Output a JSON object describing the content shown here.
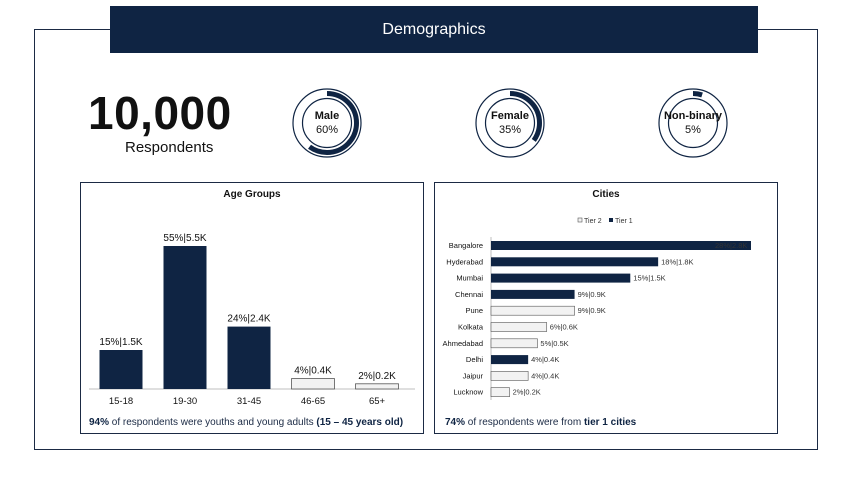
{
  "banner": {
    "title": "Demographics"
  },
  "summary": {
    "count": "10,000",
    "label": "Respondents"
  },
  "gender": [
    {
      "name": "Male",
      "percent_label": "60%",
      "share": 0.6
    },
    {
      "name": "Female",
      "percent_label": "35%",
      "share": 0.35
    },
    {
      "name": "Non-binary",
      "percent_label": "5%",
      "share": 0.05
    }
  ],
  "colors": {
    "navy": "#0f2443",
    "light": "#f2f2f2",
    "ring_bg": "#ffffff"
  },
  "chart_data": [
    {
      "type": "bar",
      "title": "Age Groups",
      "categories": [
        "15-18",
        "19-30",
        "31-45",
        "46-65",
        "65+"
      ],
      "values": [
        15,
        55,
        24,
        4,
        2
      ],
      "data_labels": [
        "15%|1.5K",
        "55%|5.5K",
        "24%|2.4K",
        "4%|0.4K",
        "2%|0.2K"
      ],
      "series_color": [
        "navy",
        "navy",
        "navy",
        "light",
        "light"
      ],
      "ylim": [
        0,
        60
      ]
    },
    {
      "type": "bar",
      "orientation": "horizontal",
      "title": "Cities",
      "legend": [
        "Tier 2",
        "Tier 1"
      ],
      "categories": [
        "Bangalore",
        "Hyderabad",
        "Mumbai",
        "Chennai",
        "Pune",
        "Kolkata",
        "Ahmedabad",
        "Delhi",
        "Jaipur",
        "Lucknow"
      ],
      "values": [
        28,
        18,
        15,
        9,
        9,
        6,
        5,
        4,
        4,
        2
      ],
      "data_labels": [
        "28%|2.8K",
        "18%|1.8K",
        "15%|1.5K",
        "9%|0.9K",
        "9%|0.9K",
        "6%|0.6K",
        "5%|0.5K",
        "4%|0.4K",
        "4%|0.4K",
        "2%|0.2K"
      ],
      "tier": [
        "Tier 1",
        "Tier 1",
        "Tier 1",
        "Tier 1",
        "Tier 2",
        "Tier 2",
        "Tier 2",
        "Tier 1",
        "Tier 2",
        "Tier 2"
      ],
      "xlim": [
        0,
        28
      ]
    }
  ],
  "captions": {
    "age": {
      "pct": "94%",
      "text": " of respondents were youths and young adults ",
      "bold": "(15 – 45 years old)"
    },
    "cities": {
      "pct": "74%",
      "text": " of respondents were from ",
      "bold": "tier 1 cities"
    }
  }
}
